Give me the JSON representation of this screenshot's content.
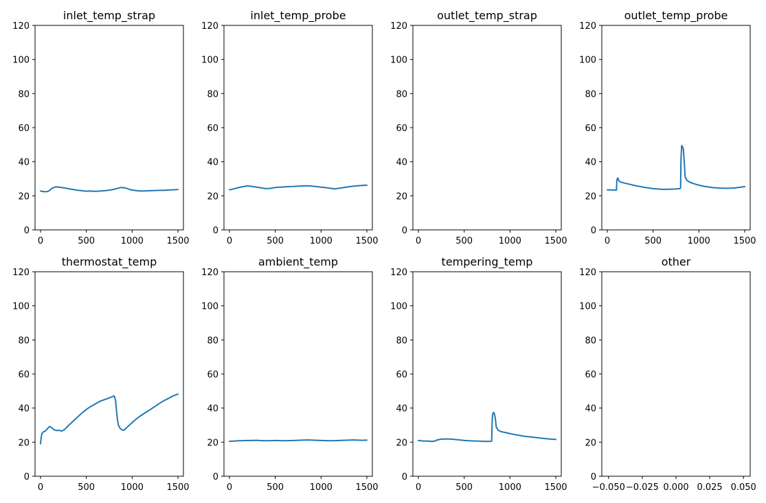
{
  "figure": {
    "line_color": "#1f77b4",
    "y_ticks": [
      "0",
      "20",
      "40",
      "60",
      "80",
      "100",
      "120"
    ],
    "x_ticks": [
      "0",
      "500",
      "1000",
      "1500"
    ],
    "empty_x_ticks": [
      "−0.050",
      "−0.025",
      "0.000",
      "0.025",
      "0.050"
    ]
  },
  "chart_data": [
    {
      "type": "line",
      "title": "inlet_temp_strap",
      "xlim": [
        -60,
        1560
      ],
      "ylim": [
        0,
        120
      ],
      "has_data": true,
      "series": [
        {
          "x": [
            0,
            40,
            80,
            100,
            130,
            170,
            210,
            260,
            320,
            400,
            450,
            500,
            550,
            600,
            650,
            700,
            750,
            800,
            850,
            880,
            920,
            950,
            980,
            1000,
            1050,
            1100,
            1150,
            1200,
            1250,
            1300,
            1350,
            1400,
            1450,
            1500
          ],
          "y": [
            22.8,
            22.4,
            22.5,
            23.2,
            24.6,
            25.3,
            25.0,
            24.6,
            24.0,
            23.3,
            23.0,
            22.7,
            22.8,
            22.6,
            22.8,
            23.0,
            23.3,
            23.8,
            24.5,
            24.9,
            24.7,
            24.2,
            23.6,
            23.4,
            23.0,
            22.8,
            22.9,
            23.0,
            23.1,
            23.2,
            23.2,
            23.4,
            23.5,
            23.7
          ]
        }
      ]
    },
    {
      "type": "line",
      "title": "inlet_temp_probe",
      "xlim": [
        -60,
        1560
      ],
      "ylim": [
        0,
        120
      ],
      "has_data": true,
      "series": [
        {
          "x": [
            0,
            50,
            100,
            150,
            200,
            250,
            300,
            350,
            400,
            450,
            500,
            550,
            600,
            650,
            700,
            750,
            800,
            850,
            900,
            950,
            1000,
            1050,
            1100,
            1150,
            1200,
            1250,
            1300,
            1350,
            1400,
            1450,
            1500
          ],
          "y": [
            23.5,
            24.1,
            24.8,
            25.4,
            25.8,
            25.5,
            25.1,
            24.6,
            24.2,
            24.4,
            24.9,
            25.1,
            25.2,
            25.4,
            25.5,
            25.7,
            25.8,
            25.9,
            25.7,
            25.4,
            25.1,
            24.8,
            24.4,
            24.1,
            24.5,
            24.9,
            25.3,
            25.6,
            25.9,
            26.1,
            26.2
          ]
        }
      ]
    },
    {
      "type": "line",
      "title": "outlet_temp_strap",
      "xlim": [
        -60,
        1560
      ],
      "ylim": [
        0,
        120
      ],
      "has_data": false,
      "series": []
    },
    {
      "type": "line",
      "title": "outlet_temp_probe",
      "xlim": [
        -60,
        1560
      ],
      "ylim": [
        0,
        120
      ],
      "has_data": true,
      "series": [
        {
          "x": [
            0,
            50,
            100,
            105,
            115,
            130,
            150,
            200,
            250,
            300,
            350,
            400,
            450,
            500,
            550,
            600,
            650,
            700,
            750,
            790,
            800,
            805,
            812,
            820,
            830,
            840,
            850,
            870,
            900,
            950,
            1000,
            1050,
            1100,
            1150,
            1200,
            1250,
            1300,
            1350,
            1400,
            1450,
            1500
          ],
          "y": [
            23.5,
            23.4,
            23.3,
            29.5,
            30.5,
            28.5,
            28.0,
            27.3,
            26.7,
            26.0,
            25.5,
            25.0,
            24.6,
            24.2,
            24.0,
            23.8,
            23.8,
            23.9,
            24.0,
            24.2,
            24.6,
            42.0,
            49.5,
            49.0,
            47.5,
            40.0,
            31.0,
            29.0,
            28.0,
            27.0,
            26.2,
            25.6,
            25.2,
            24.8,
            24.6,
            24.5,
            24.4,
            24.5,
            24.7,
            25.0,
            25.4
          ]
        }
      ]
    },
    {
      "type": "line",
      "title": "thermostat_temp",
      "xlim": [
        -60,
        1560
      ],
      "ylim": [
        0,
        120
      ],
      "has_data": true,
      "series": [
        {
          "x": [
            0,
            5,
            15,
            30,
            50,
            70,
            90,
            100,
            120,
            150,
            180,
            200,
            230,
            260,
            300,
            350,
            400,
            450,
            500,
            550,
            600,
            650,
            700,
            750,
            790,
            800,
            810,
            820,
            830,
            840,
            850,
            870,
            890,
            910,
            930,
            950,
            1000,
            1050,
            1100,
            1150,
            1200,
            1250,
            1300,
            1350,
            1400,
            1450,
            1500
          ],
          "y": [
            19.0,
            22.0,
            25.0,
            26.0,
            26.5,
            27.5,
            28.8,
            29.2,
            28.5,
            27.2,
            26.8,
            27.0,
            26.5,
            27.3,
            29.5,
            32.0,
            34.5,
            37.0,
            39.2,
            41.0,
            42.5,
            44.0,
            45.0,
            46.0,
            46.8,
            47.2,
            46.5,
            44.0,
            38.0,
            33.0,
            30.0,
            28.0,
            27.2,
            27.0,
            28.0,
            29.0,
            31.5,
            33.8,
            35.8,
            37.5,
            39.2,
            41.0,
            42.8,
            44.4,
            45.8,
            47.2,
            48.2
          ]
        }
      ]
    },
    {
      "type": "line",
      "title": "ambient_temp",
      "xlim": [
        -60,
        1560
      ],
      "ylim": [
        0,
        120
      ],
      "has_data": true,
      "series": [
        {
          "x": [
            0,
            50,
            100,
            150,
            200,
            250,
            300,
            350,
            400,
            450,
            500,
            550,
            600,
            650,
            700,
            750,
            800,
            850,
            900,
            950,
            1000,
            1050,
            1100,
            1150,
            1200,
            1250,
            1300,
            1350,
            1400,
            1450,
            1500
          ],
          "y": [
            20.5,
            20.6,
            20.8,
            20.9,
            21.0,
            21.0,
            21.1,
            20.9,
            20.8,
            20.9,
            21.0,
            20.9,
            20.8,
            20.9,
            21.0,
            21.1,
            21.2,
            21.3,
            21.2,
            21.1,
            21.0,
            20.9,
            20.8,
            20.9,
            21.0,
            21.1,
            21.2,
            21.3,
            21.2,
            21.1,
            21.2
          ]
        }
      ]
    },
    {
      "type": "line",
      "title": "tempering_temp",
      "xlim": [
        -60,
        1560
      ],
      "ylim": [
        0,
        120
      ],
      "has_data": true,
      "series": [
        {
          "x": [
            0,
            50,
            100,
            150,
            180,
            200,
            230,
            260,
            300,
            350,
            400,
            450,
            500,
            550,
            600,
            650,
            700,
            750,
            790,
            800,
            805,
            810,
            820,
            830,
            840,
            850,
            870,
            900,
            950,
            1000,
            1050,
            1100,
            1150,
            1200,
            1250,
            1300,
            1350,
            1400,
            1450,
            1500
          ],
          "y": [
            21.0,
            20.7,
            20.6,
            20.4,
            20.6,
            21.2,
            21.6,
            21.8,
            21.9,
            21.8,
            21.6,
            21.3,
            21.0,
            20.8,
            20.7,
            20.6,
            20.5,
            20.4,
            20.5,
            20.6,
            31.0,
            36.0,
            37.5,
            36.5,
            34.0,
            29.0,
            27.0,
            26.2,
            25.6,
            25.0,
            24.5,
            24.0,
            23.5,
            23.2,
            22.9,
            22.6,
            22.3,
            22.0,
            21.8,
            21.6
          ]
        }
      ]
    },
    {
      "type": "line",
      "title": "other",
      "xlim": [
        -0.055,
        0.055
      ],
      "ylim": [
        0,
        120
      ],
      "has_data": false,
      "series": []
    }
  ]
}
